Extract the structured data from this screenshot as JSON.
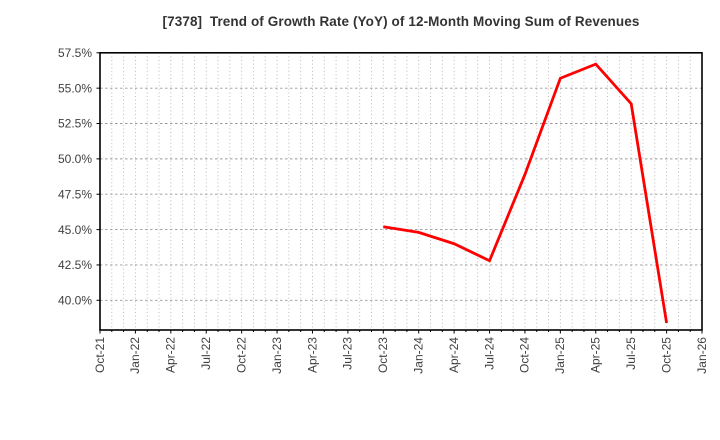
{
  "title": "[7378]  Trend of Growth Rate (YoY) of 12-Month Moving Sum of Revenues",
  "colors": {
    "line": "#ff0000",
    "frame": "#000000",
    "grid_minor_vertical": "#b3b3b3",
    "grid_major_horizontal": "#999999",
    "title_text": "#333333",
    "tick_text": "#404040",
    "background": "#ffffff"
  },
  "chart_data": {
    "type": "line",
    "title": "[7378]  Trend of Growth Rate (YoY) of 12-Month Moving Sum of Revenues",
    "xlabel": "",
    "ylabel": "",
    "x_tick_labels": [
      "Oct-21",
      "Jan-22",
      "Apr-22",
      "Jul-22",
      "Oct-22",
      "Jan-23",
      "Apr-23",
      "Jul-23",
      "Oct-23",
      "Jan-24",
      "Apr-24",
      "Jul-24",
      "Oct-24",
      "Jan-25",
      "Apr-25",
      "Jul-25",
      "Oct-25",
      "Jan-26"
    ],
    "months_per_tick": 3,
    "y_ticks": [
      {
        "value": 57.5,
        "label": "57.5%"
      },
      {
        "value": 55.0,
        "label": "55.0%"
      },
      {
        "value": 52.5,
        "label": "52.5%"
      },
      {
        "value": 50.0,
        "label": "50.0%"
      },
      {
        "value": 47.5,
        "label": "47.5%"
      },
      {
        "value": 45.0,
        "label": "45.0%"
      },
      {
        "value": 42.5,
        "label": "42.5%"
      },
      {
        "value": 40.0,
        "label": "40.0%"
      }
    ],
    "ylim": [
      37.9,
      57.5
    ],
    "grid": true,
    "legend": "none",
    "series": [
      {
        "name": "Growth Rate (YoY) of 12-Month Moving Sum of Revenues",
        "color": "#ff0000",
        "points": [
          {
            "x": "Oct-23",
            "y": 45.2
          },
          {
            "x": "Jan-24",
            "y": 44.8
          },
          {
            "x": "Apr-24",
            "y": 44.0
          },
          {
            "x": "Jul-24",
            "y": 42.8
          },
          {
            "x": "Oct-24",
            "y": 48.9
          },
          {
            "x": "Jan-25",
            "y": 55.7
          },
          {
            "x": "Apr-25",
            "y": 56.7
          },
          {
            "x": "Jul-25",
            "y": 53.9
          },
          {
            "x": "Oct-25",
            "y": 38.4
          }
        ]
      }
    ]
  }
}
